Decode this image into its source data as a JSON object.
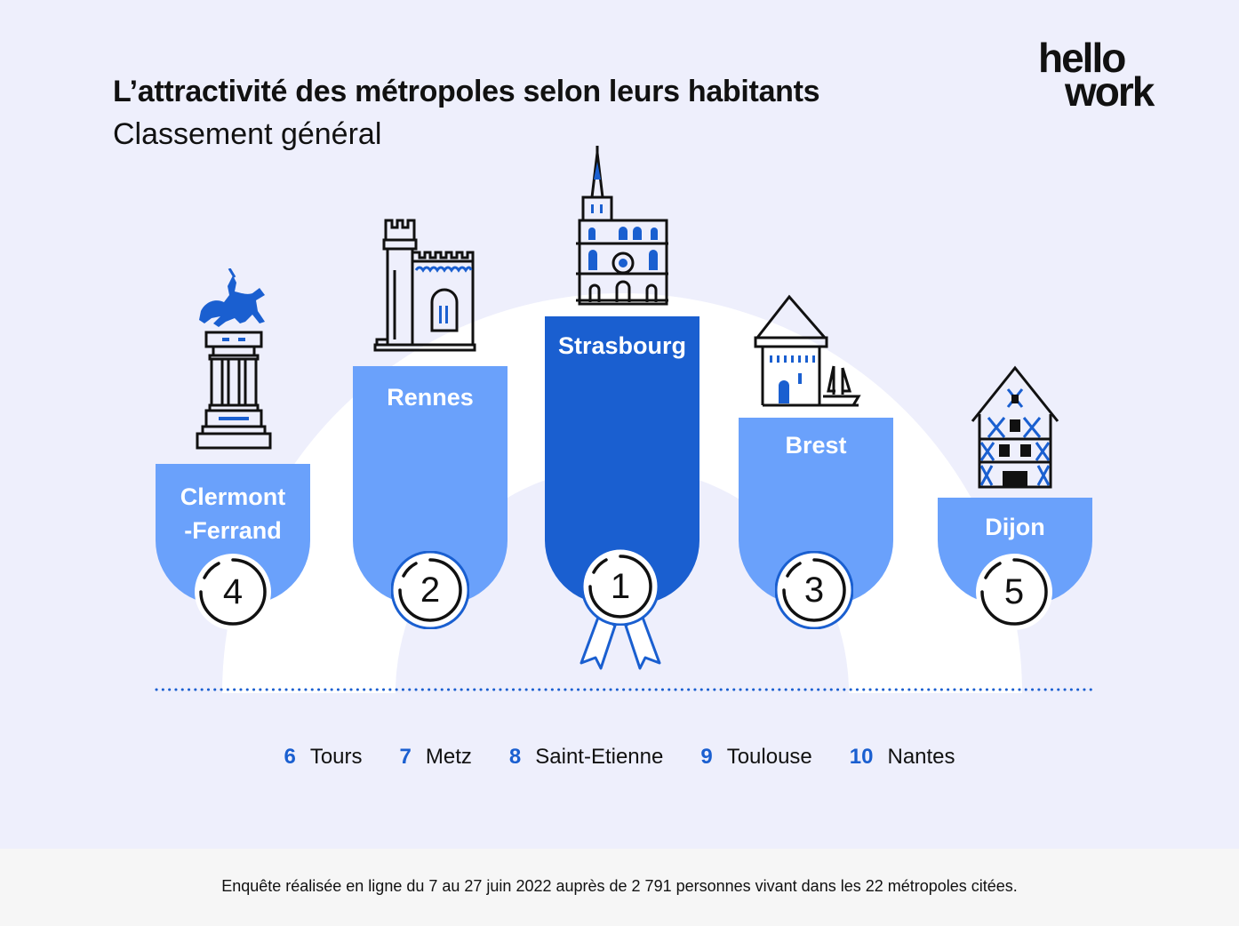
{
  "header": {
    "title": "L’attractivité des métropoles selon leurs habitants",
    "subtitle": "Classement général"
  },
  "logo": {
    "line1": "hello",
    "line2": "work"
  },
  "colors": {
    "light_blue": "#6aa1fb",
    "dark_blue": "#1a5fd0",
    "background": "#eeeffc"
  },
  "podium": [
    {
      "rank": "4",
      "city": "Clermont",
      "city2": "-Ferrand",
      "monument": "equestrian-statue-icon"
    },
    {
      "rank": "2",
      "city": "Rennes",
      "monument": "castle-tower-icon"
    },
    {
      "rank": "1",
      "city": "Strasbourg",
      "monument": "cathedral-icon"
    },
    {
      "rank": "3",
      "city": "Brest",
      "monument": "lighthouse-tower-icon"
    },
    {
      "rank": "5",
      "city": "Dijon",
      "monument": "half-timbered-house-icon"
    }
  ],
  "others": [
    {
      "rank": "6",
      "city": "Tours"
    },
    {
      "rank": "7",
      "city": "Metz"
    },
    {
      "rank": "8",
      "city": "Saint-Etienne"
    },
    {
      "rank": "9",
      "city": "Toulouse"
    },
    {
      "rank": "10",
      "city": "Nantes"
    }
  ],
  "footer": {
    "note": "Enquête réalisée en ligne du 7 au 27 juin 2022 auprès de 2 791 personnes vivant dans les 22 métropoles citées."
  }
}
